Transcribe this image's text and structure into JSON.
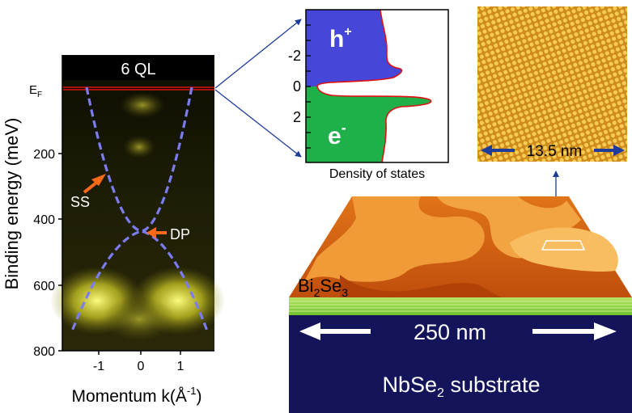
{
  "arpes": {
    "title": "6 QL",
    "fermi_label": "E",
    "fermi_sub": "F",
    "ylabel": "Binding energy (meV)",
    "xlabel_pre": "Momentum k(Å",
    "xlabel_sup": "-1",
    "xlabel_post": ")",
    "y_ticks": [
      "200",
      "400",
      "600",
      "800"
    ],
    "x_ticks": [
      "-1",
      "0",
      "1"
    ],
    "ss_label": "SS",
    "dp_label": "DP"
  },
  "dos": {
    "xlabel": "Density of states",
    "y_ticks": [
      "-2",
      "0",
      "2"
    ],
    "holes_label": "h",
    "holes_sup": "+",
    "electrons_label": "e",
    "electrons_sup": "-"
  },
  "stm": {
    "scale_label": "13.5 nm"
  },
  "substrate": {
    "film_main": "Bi",
    "film_sub1": "2",
    "film_mid": "Se",
    "film_sub2": "3",
    "width_label": "250 nm",
    "sub_main": "NbSe",
    "sub_sub": "2",
    "sub_rest": " substrate"
  },
  "colors": {
    "dashed_bands": "#7a7cf0",
    "arrow_orange": "#ff6a1a",
    "holes_fill": "#4646d8",
    "electrons_fill": "#1fb04a",
    "dos_outline": "#e01010",
    "substrate": "#14145a",
    "pointer_lines": "#1e3c9a"
  }
}
